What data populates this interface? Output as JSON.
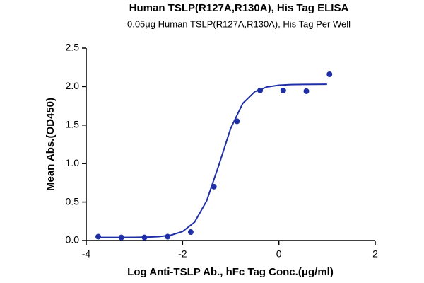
{
  "chart_data": {
    "type": "scatter",
    "title": "Human TSLP(R127A,R130A), His Tag ELISA",
    "subtitle": "0.05μg Human TSLP(R127A,R130A), His Tag Per Well",
    "x_label": "Log Anti-TSLP Ab., hFc Tag Conc.(μg/ml)",
    "y_label": "Mean Abs.(OD450)",
    "series": [
      {
        "color": "#1f2fa8",
        "x": [
          -3.75,
          -3.27,
          -2.79,
          -2.31,
          -1.83,
          -1.35,
          -0.87,
          -0.39,
          0.09,
          0.57,
          1.05
        ],
        "values": [
          0.05,
          0.04,
          0.04,
          0.05,
          0.11,
          0.7,
          1.55,
          1.95,
          1.95,
          1.94,
          2.16
        ]
      }
    ],
    "fit_curve": {
      "color": "#1f2fa8",
      "x": [
        -3.75,
        -3.5,
        -3.25,
        -3.0,
        -2.75,
        -2.5,
        -2.25,
        -2.0,
        -1.75,
        -1.5,
        -1.25,
        -1.0,
        -0.75,
        -0.5,
        -0.25,
        0.0,
        0.25,
        0.5,
        0.75,
        1.0
      ],
      "values": [
        0.04,
        0.04,
        0.04,
        0.041,
        0.044,
        0.05,
        0.068,
        0.117,
        0.239,
        0.515,
        0.974,
        1.459,
        1.782,
        1.934,
        1.995,
        2.017,
        2.025,
        2.028,
        2.029,
        2.03
      ]
    },
    "xlim": [
      -4,
      2
    ],
    "xticks": [
      -4,
      -2,
      0,
      2
    ],
    "ylim": [
      0,
      2.5
    ],
    "yticks": [
      {
        "value": 0,
        "label": "0.0"
      },
      {
        "value": 0.5,
        "label": "0.5"
      },
      {
        "value": 1,
        "label": "1.0"
      },
      {
        "value": 1.5,
        "label": "1.5"
      },
      {
        "value": 2,
        "label": "2.0"
      },
      {
        "value": 2.5,
        "label": "2.5"
      }
    ]
  }
}
